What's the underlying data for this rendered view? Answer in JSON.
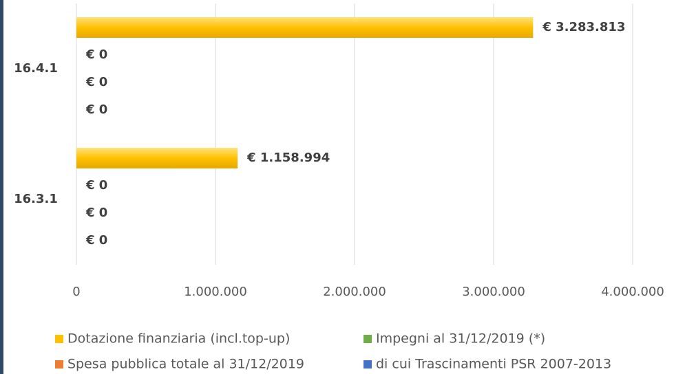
{
  "chart_data": {
    "type": "bar",
    "orientation": "horizontal",
    "categories": [
      "16.4.1",
      "16.3.1"
    ],
    "series": [
      {
        "name": "Dotazione finanziaria (incl.top-up)",
        "color": "#ffc000",
        "values": [
          3283813,
          1158994
        ],
        "value_labels": [
          "€ 3.283.813",
          "€ 1.158.994"
        ]
      },
      {
        "name": "Impegni al 31/12/2019 (*)",
        "color": "#70ad47",
        "values": [
          0,
          0
        ],
        "value_labels": [
          "€ 0",
          "€ 0"
        ]
      },
      {
        "name": "Spesa pubblica totale al 31/12/2019",
        "color": "#ed7d31",
        "values": [
          0,
          0
        ],
        "value_labels": [
          "€ 0",
          "€ 0"
        ]
      },
      {
        "name": "di cui Trascinamenti PSR 2007-2013",
        "color": "#4472c4",
        "values": [
          0,
          0
        ],
        "value_labels": [
          "€ 0",
          "€ 0"
        ]
      }
    ],
    "xlim": [
      0,
      4000000
    ],
    "xticks": [
      0,
      {
        "value": 1000000,
        "label": "1.000.000"
      },
      {
        "value": 2000000,
        "label": "2.000.000"
      },
      {
        "value": 3000000,
        "label": "3.000.000"
      },
      {
        "value": 4000000,
        "label": "4.000.000"
      }
    ],
    "grid": true,
    "legend": "bottom"
  }
}
